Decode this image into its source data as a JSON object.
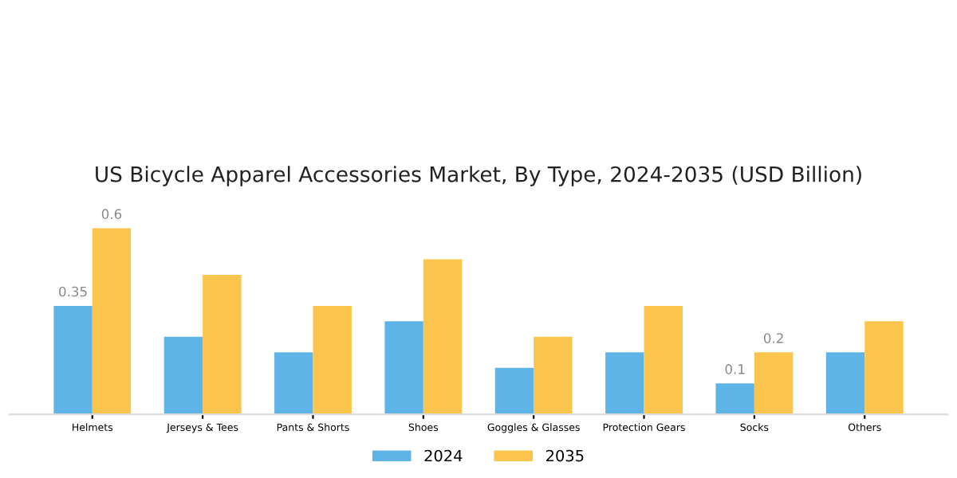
{
  "chart_data": {
    "type": "bar",
    "title": "US Bicycle Apparel Accessories Market, By Type, 2024-2035 (USD Billion)",
    "categories": [
      "Helmets",
      "Jerseys & Tees",
      "Pants & Shorts",
      "Shoes",
      "Goggles & Glasses",
      "Protection Gears",
      "Socks",
      "Others"
    ],
    "series": [
      {
        "name": "2024",
        "color": "#5eb4e6",
        "values": [
          0.35,
          0.25,
          0.2,
          0.3,
          0.15,
          0.2,
          0.1,
          0.2
        ],
        "value_labels": [
          "0.35",
          null,
          null,
          null,
          null,
          null,
          "0.1",
          null
        ]
      },
      {
        "name": "2035",
        "color": "#fbc44c",
        "values": [
          0.6,
          0.45,
          0.35,
          0.5,
          0.25,
          0.35,
          0.2,
          0.3
        ],
        "value_labels": [
          "0.6",
          null,
          null,
          null,
          null,
          null,
          "0.2",
          null
        ]
      }
    ],
    "legend": "bottom",
    "grid": false
  }
}
